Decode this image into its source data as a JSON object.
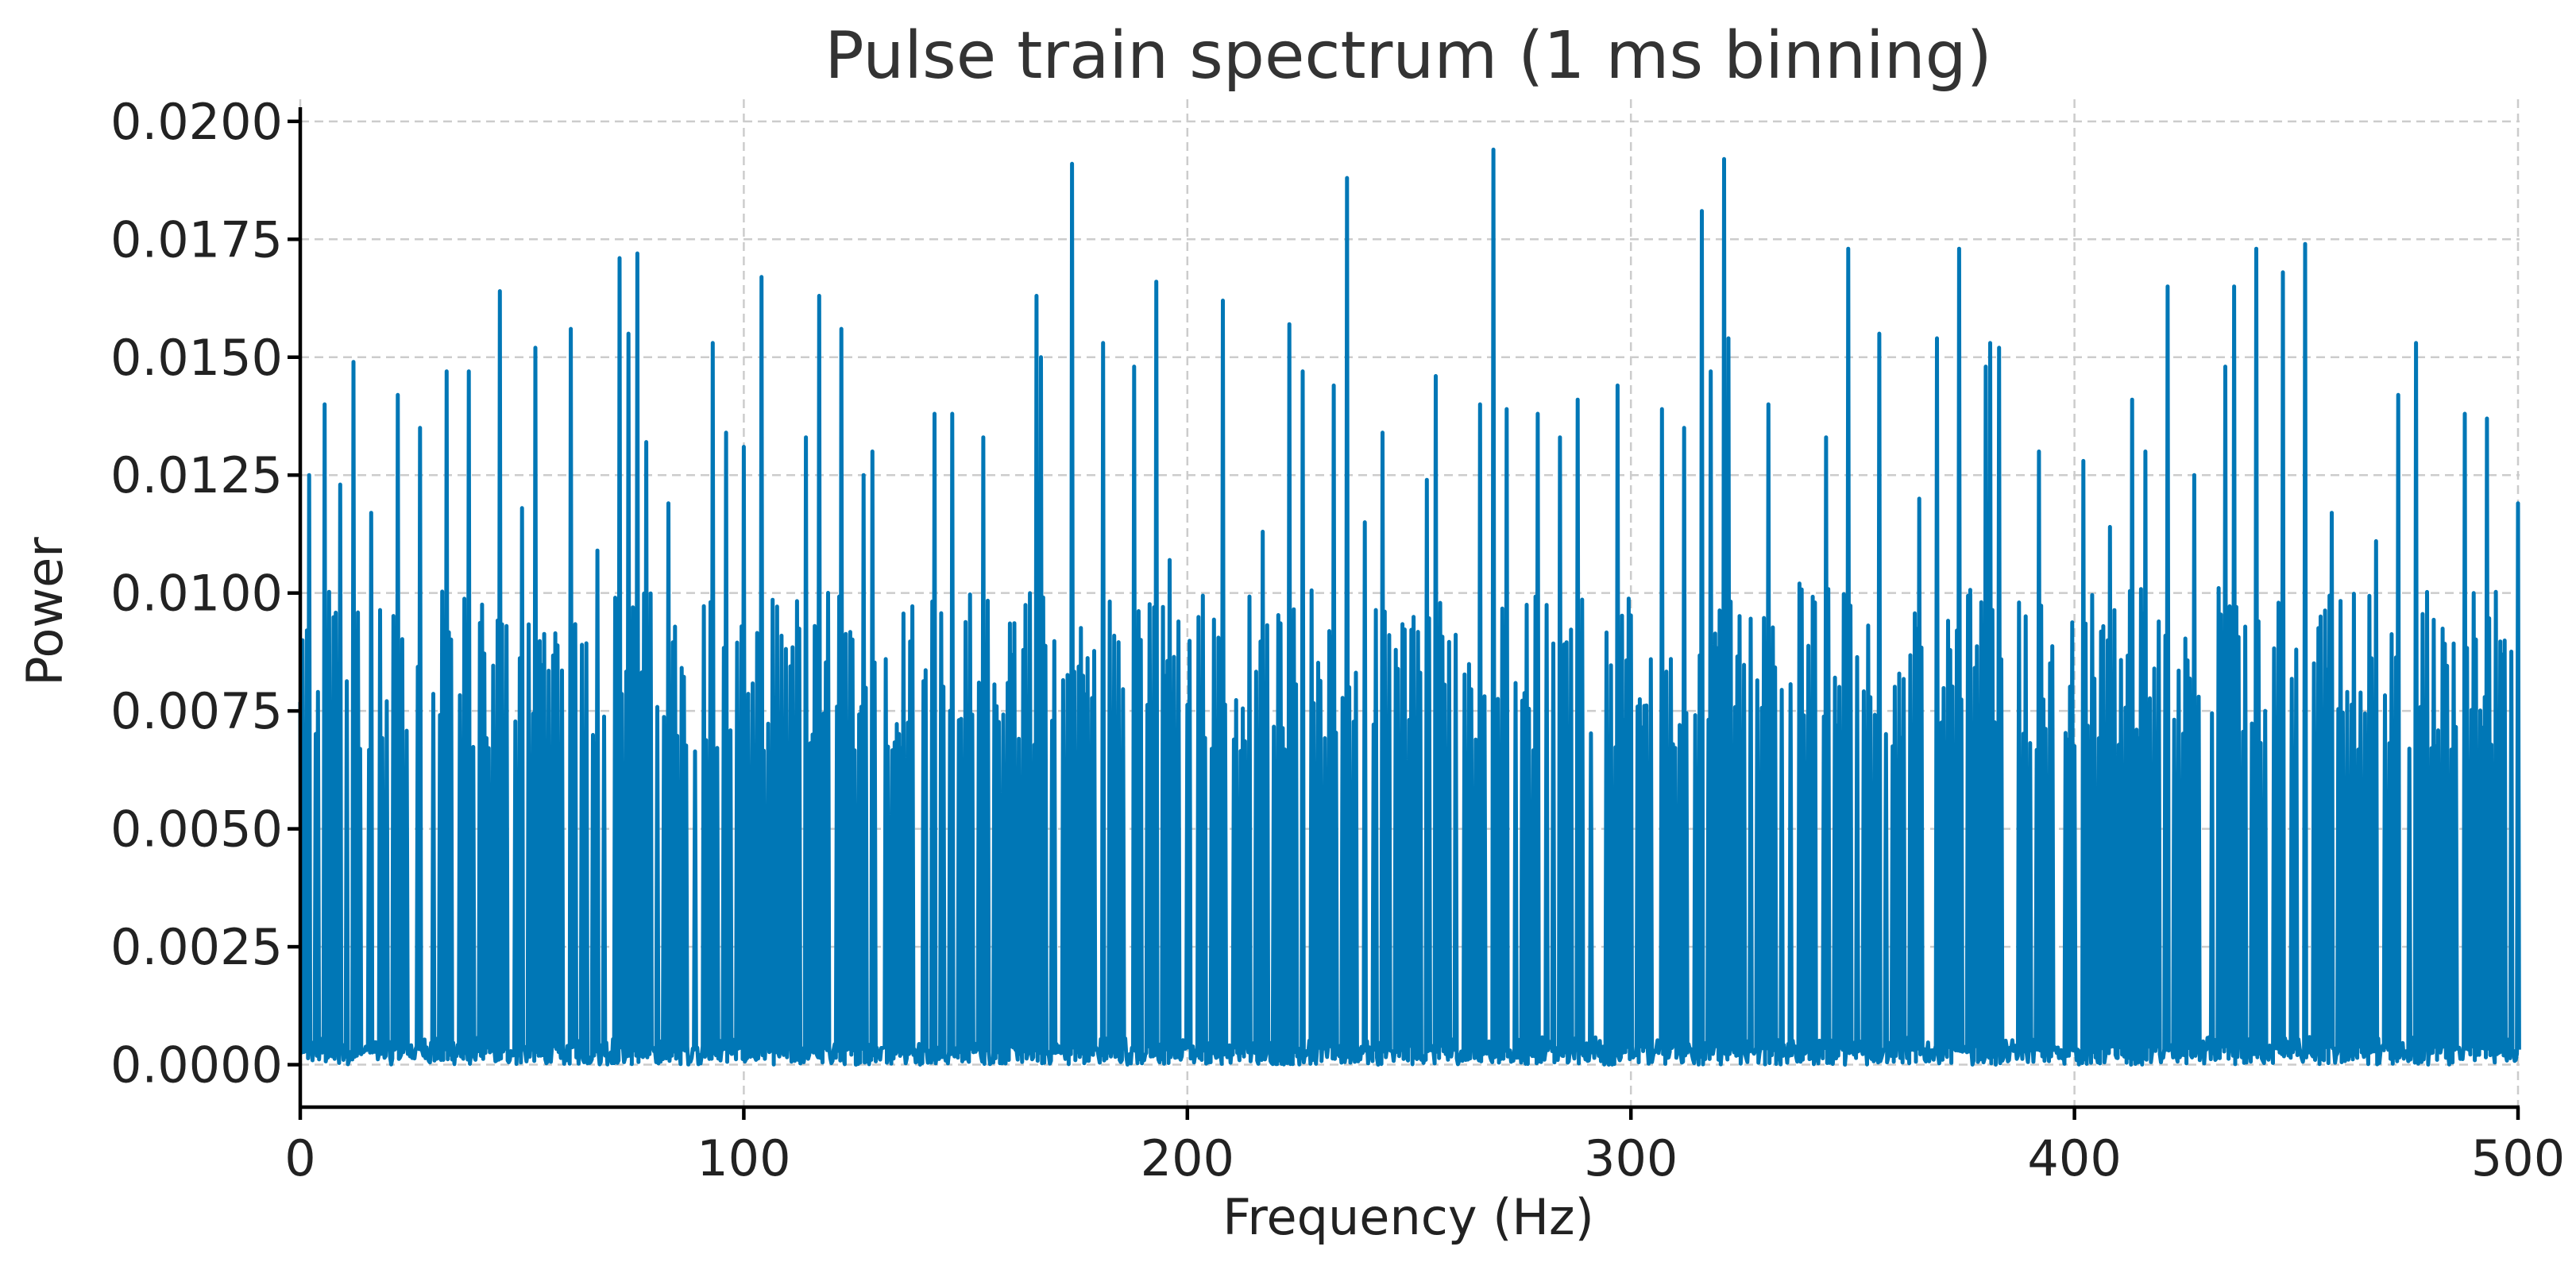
{
  "chart_data": {
    "type": "line",
    "title": "Pulse train spectrum (1 ms binning)",
    "xlabel": "Frequency (Hz)",
    "ylabel": "Power",
    "xlim": [
      0,
      500
    ],
    "ylim": [
      -0.0009,
      0.0203
    ],
    "x_ticks": [
      0,
      100,
      200,
      300,
      400,
      500
    ],
    "x_tick_labels": [
      "0",
      "100",
      "200",
      "300",
      "400",
      "500"
    ],
    "y_ticks": [
      0,
      0.0025,
      0.005,
      0.0075,
      0.01,
      0.0125,
      0.015,
      0.0175,
      0.02
    ],
    "y_tick_labels": [
      "0.0000",
      "0.0025",
      "0.0050",
      "0.0075",
      "0.0100",
      "0.0125",
      "0.0150",
      "0.0175",
      "0.0200"
    ],
    "grid": true,
    "legend": "none",
    "series_color": "#0077b6",
    "x_step": 0.5,
    "noise_floor": 0.0,
    "typical_level": 0.0092,
    "peaks": [
      {
        "x": 2,
        "y": 0.0125
      },
      {
        "x": 5.5,
        "y": 0.014
      },
      {
        "x": 9,
        "y": 0.0123
      },
      {
        "x": 12,
        "y": 0.0149
      },
      {
        "x": 16,
        "y": 0.0117
      },
      {
        "x": 22,
        "y": 0.0142
      },
      {
        "x": 27,
        "y": 0.0135
      },
      {
        "x": 33,
        "y": 0.0147
      },
      {
        "x": 38,
        "y": 0.0147
      },
      {
        "x": 45,
        "y": 0.0164
      },
      {
        "x": 50,
        "y": 0.0118
      },
      {
        "x": 53,
        "y": 0.0152
      },
      {
        "x": 61,
        "y": 0.0156
      },
      {
        "x": 67,
        "y": 0.0109
      },
      {
        "x": 72,
        "y": 0.0171
      },
      {
        "x": 74,
        "y": 0.0155
      },
      {
        "x": 76,
        "y": 0.0172
      },
      {
        "x": 78,
        "y": 0.0132
      },
      {
        "x": 83,
        "y": 0.0119
      },
      {
        "x": 93,
        "y": 0.0153
      },
      {
        "x": 96,
        "y": 0.0134
      },
      {
        "x": 100,
        "y": 0.0131
      },
      {
        "x": 104,
        "y": 0.0167
      },
      {
        "x": 114,
        "y": 0.0133
      },
      {
        "x": 117,
        "y": 0.0163
      },
      {
        "x": 122,
        "y": 0.0156
      },
      {
        "x": 127,
        "y": 0.0125
      },
      {
        "x": 129,
        "y": 0.013
      },
      {
        "x": 143,
        "y": 0.0138
      },
      {
        "x": 147,
        "y": 0.0138
      },
      {
        "x": 154,
        "y": 0.0133
      },
      {
        "x": 166,
        "y": 0.0163
      },
      {
        "x": 167,
        "y": 0.015
      },
      {
        "x": 174,
        "y": 0.0191
      },
      {
        "x": 181,
        "y": 0.0153
      },
      {
        "x": 188,
        "y": 0.0148
      },
      {
        "x": 193,
        "y": 0.0166
      },
      {
        "x": 196,
        "y": 0.0107
      },
      {
        "x": 208,
        "y": 0.0162
      },
      {
        "x": 217,
        "y": 0.0113
      },
      {
        "x": 223,
        "y": 0.0157
      },
      {
        "x": 226,
        "y": 0.0147
      },
      {
        "x": 233,
        "y": 0.0144
      },
      {
        "x": 236,
        "y": 0.0188
      },
      {
        "x": 240,
        "y": 0.0115
      },
      {
        "x": 244,
        "y": 0.0134
      },
      {
        "x": 254,
        "y": 0.0124
      },
      {
        "x": 256,
        "y": 0.0146
      },
      {
        "x": 266,
        "y": 0.014
      },
      {
        "x": 269,
        "y": 0.0194
      },
      {
        "x": 272,
        "y": 0.0139
      },
      {
        "x": 279,
        "y": 0.0138
      },
      {
        "x": 284,
        "y": 0.0133
      },
      {
        "x": 288,
        "y": 0.0141
      },
      {
        "x": 297,
        "y": 0.0144
      },
      {
        "x": 307,
        "y": 0.0139
      },
      {
        "x": 312,
        "y": 0.0135
      },
      {
        "x": 316,
        "y": 0.0181
      },
      {
        "x": 318,
        "y": 0.0147
      },
      {
        "x": 321,
        "y": 0.0192
      },
      {
        "x": 322,
        "y": 0.0154
      },
      {
        "x": 331,
        "y": 0.014
      },
      {
        "x": 338,
        "y": 0.0102
      },
      {
        "x": 344,
        "y": 0.0133
      },
      {
        "x": 349,
        "y": 0.0173
      },
      {
        "x": 356,
        "y": 0.0155
      },
      {
        "x": 365,
        "y": 0.012
      },
      {
        "x": 369,
        "y": 0.0154
      },
      {
        "x": 374,
        "y": 0.0173
      },
      {
        "x": 380,
        "y": 0.0148
      },
      {
        "x": 381,
        "y": 0.0153
      },
      {
        "x": 383,
        "y": 0.0152
      },
      {
        "x": 392,
        "y": 0.013
      },
      {
        "x": 402,
        "y": 0.0128
      },
      {
        "x": 408,
        "y": 0.0114
      },
      {
        "x": 413,
        "y": 0.0141
      },
      {
        "x": 416,
        "y": 0.013
      },
      {
        "x": 421,
        "y": 0.0165
      },
      {
        "x": 427,
        "y": 0.0125
      },
      {
        "x": 434,
        "y": 0.0148
      },
      {
        "x": 436,
        "y": 0.0165
      },
      {
        "x": 441,
        "y": 0.0173
      },
      {
        "x": 447,
        "y": 0.0168
      },
      {
        "x": 452,
        "y": 0.0174
      },
      {
        "x": 458,
        "y": 0.0117
      },
      {
        "x": 468,
        "y": 0.0111
      },
      {
        "x": 473,
        "y": 0.0142
      },
      {
        "x": 477,
        "y": 0.0153
      },
      {
        "x": 488,
        "y": 0.0138
      },
      {
        "x": 493,
        "y": 0.0137
      },
      {
        "x": 500,
        "y": 0.0119
      }
    ]
  }
}
